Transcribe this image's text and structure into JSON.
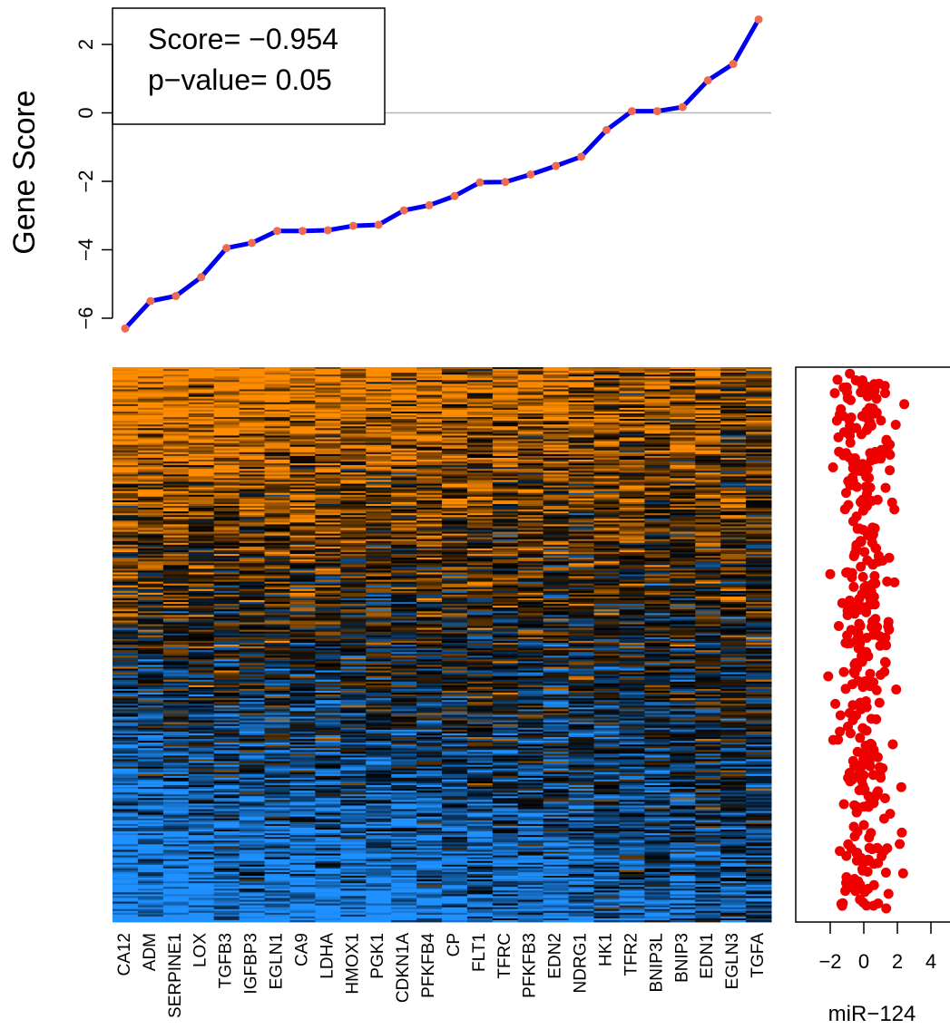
{
  "chart_data": [
    {
      "type": "line",
      "ylabel": "Gene Score",
      "ylim": [
        -6.5,
        2.8
      ],
      "yticks": [
        -6,
        -4,
        -2,
        0,
        2
      ],
      "reference_line": 0,
      "annotation": {
        "score": "Score= −0.954",
        "pvalue": "p−value= 0.05"
      },
      "line_color": "#0000ee",
      "point_color": "#ee6a50",
      "genes": [
        "CA12",
        "ADM",
        "SERPINE1",
        "LOX",
        "TGFB3",
        "IGFBP3",
        "EGLN1",
        "CA9",
        "LDHA",
        "HMOX1",
        "PGK1",
        "CDKN1A",
        "PFKFB4",
        "CP",
        "FLT1",
        "TFRC",
        "PFKFB3",
        "EDN2",
        "NDRG1",
        "HK1",
        "TFR2",
        "BNIP3L",
        "BNIP3",
        "EDN1",
        "EGLN3",
        "TGFA"
      ],
      "values": [
        -6.3,
        -5.5,
        -5.35,
        -4.8,
        -3.95,
        -3.8,
        -3.45,
        -3.45,
        -3.43,
        -3.3,
        -3.27,
        -2.85,
        -2.7,
        -2.43,
        -2.03,
        -2.02,
        -1.8,
        -1.55,
        -1.28,
        -0.5,
        0.05,
        0.05,
        0.17,
        0.95,
        1.43,
        2.73
      ]
    },
    {
      "type": "heatmap",
      "columns": [
        "CA12",
        "ADM",
        "SERPINE1",
        "LOX",
        "TGFB3",
        "IGFBP3",
        "EGLN1",
        "CA9",
        "LDHA",
        "HMOX1",
        "PGK1",
        "CDKN1A",
        "PFKFB4",
        "CP",
        "FLT1",
        "TFRC",
        "PFKFB3",
        "EDN2",
        "NDRG1",
        "HK1",
        "TFR2",
        "BNIP3L",
        "BNIP3",
        "EDN1",
        "EGLN3",
        "TGFA"
      ],
      "rows_sorted_by": "miR-124",
      "color_low": "#1e90ff",
      "color_mid": "#000000",
      "color_high": "#ff8c00"
    },
    {
      "type": "scatter",
      "xlabel": "miR−124",
      "xticks": [
        -2,
        0,
        2,
        4
      ],
      "xlim": [
        -3.8,
        5
      ],
      "point_color": "#ee0000"
    }
  ]
}
